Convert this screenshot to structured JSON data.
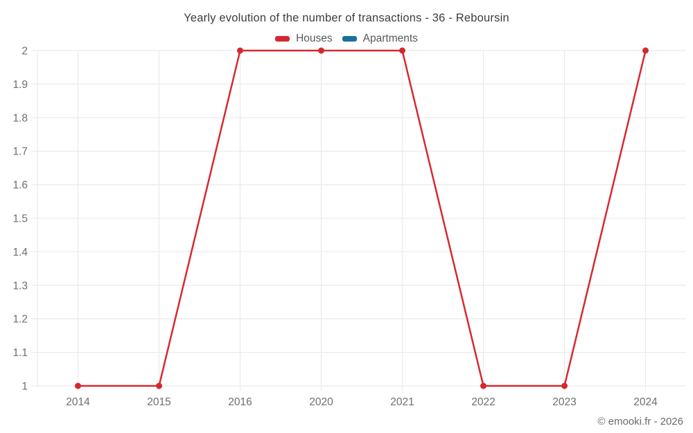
{
  "header": {
    "title": "Yearly evolution of the number of transactions - 36 - Reboursin"
  },
  "footer": {
    "credit": "© emooki.fr - 2026"
  },
  "chart_data": {
    "type": "line",
    "title": "Yearly evolution of the number of transactions - 36 - Reboursin",
    "categories": [
      "2014",
      "2015",
      "2016",
      "2020",
      "2021",
      "2022",
      "2023",
      "2024"
    ],
    "series": [
      {
        "name": "Houses",
        "color": "#d4292f",
        "values": [
          1,
          1,
          2,
          2,
          2,
          1,
          1,
          2
        ]
      },
      {
        "name": "Apartments",
        "color": "#1a6f9b",
        "values": []
      }
    ],
    "xlabel": "",
    "ylabel": "",
    "ylim": [
      1,
      2
    ],
    "yticks": [
      "1",
      "1.1",
      "1.2",
      "1.3",
      "1.4",
      "1.5",
      "1.6",
      "1.7",
      "1.8",
      "1.9",
      "2"
    ],
    "grid": true,
    "legend_position": "top",
    "marker_radius": 4.5,
    "line_width": 2.5,
    "colors": {
      "grid": "#ebebeb",
      "axis_label": "#6e6e6e",
      "title": "#3d3d3d",
      "legend_text": "#595959",
      "background": "#ffffff"
    }
  }
}
